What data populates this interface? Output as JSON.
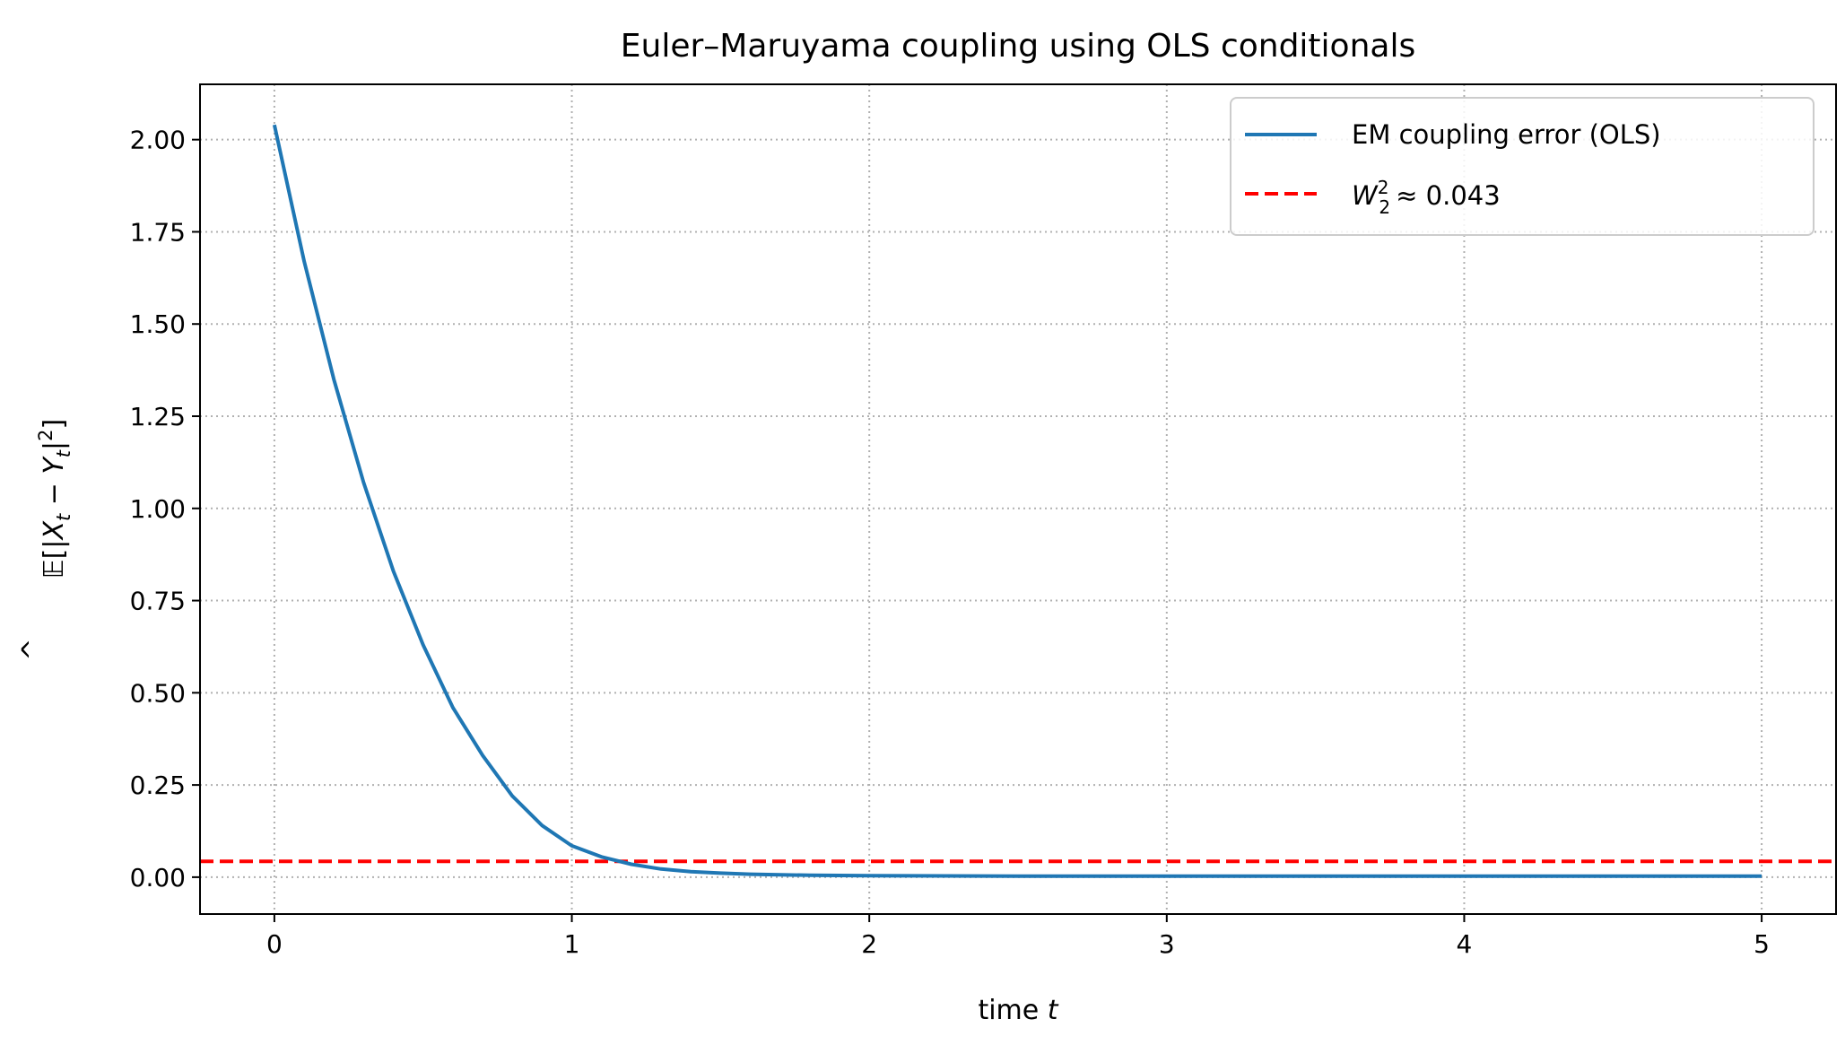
{
  "chart_data": {
    "type": "line",
    "title": "Euler–Maruyama coupling using OLS conditionals",
    "xlabel": "time t",
    "ylabel": "Ê[|X_t − Y_t|²]",
    "xlim": [
      -0.25,
      5.25
    ],
    "ylim": [
      -0.1,
      2.15
    ],
    "xticks": [
      0,
      1,
      2,
      3,
      4,
      5
    ],
    "xtick_labels": [
      "0",
      "1",
      "2",
      "3",
      "4",
      "5"
    ],
    "yticks": [
      0.0,
      0.25,
      0.5,
      0.75,
      1.0,
      1.25,
      1.5,
      1.75,
      2.0
    ],
    "ytick_labels": [
      "0.00",
      "0.25",
      "0.50",
      "0.75",
      "1.00",
      "1.25",
      "1.50",
      "1.75",
      "2.00"
    ],
    "grid": true,
    "legend_position": "top-right",
    "series": [
      {
        "name": "EM coupling error (OLS)",
        "style": "solid",
        "color": "#1f77b4",
        "x": [
          0,
          0.1,
          0.2,
          0.3,
          0.4,
          0.5,
          0.6,
          0.7,
          0.8,
          0.9,
          1.0,
          1.1,
          1.2,
          1.3,
          1.4,
          1.5,
          1.6,
          1.8,
          2.0,
          2.5,
          3.0,
          3.5,
          4.0,
          4.5,
          5.0
        ],
        "y": [
          2.04,
          1.67,
          1.35,
          1.07,
          0.83,
          0.63,
          0.46,
          0.33,
          0.22,
          0.14,
          0.085,
          0.055,
          0.035,
          0.022,
          0.015,
          0.011,
          0.008,
          0.005,
          0.004,
          0.003,
          0.003,
          0.003,
          0.003,
          0.003,
          0.003
        ]
      },
      {
        "name": "W_2^2 ≈ 0.043",
        "style": "dashed-horizontal",
        "color": "#ff0000",
        "y_value": 0.043
      }
    ],
    "legend": {
      "entry1": "EM coupling error (OLS)",
      "entry2_prefix": "W",
      "entry2_sub": "2",
      "entry2_sup": "2",
      "entry2_value": "≈ 0.043"
    }
  }
}
